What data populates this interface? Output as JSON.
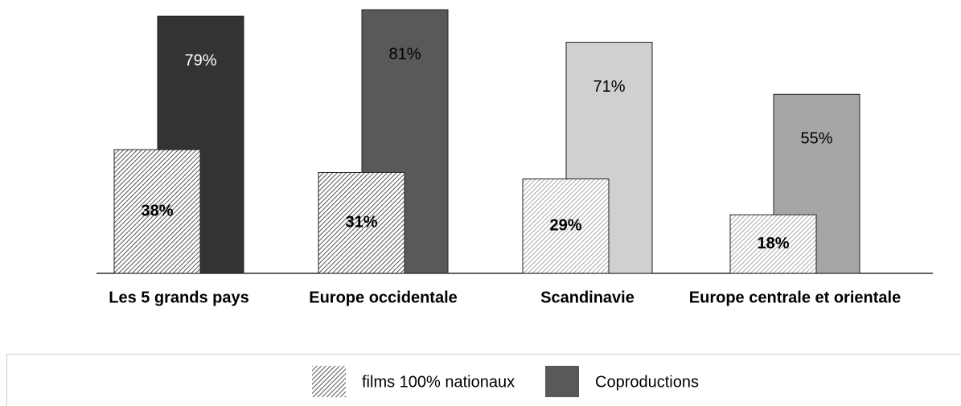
{
  "chart_data": {
    "type": "bar",
    "categories": [
      "Les 5 grands pays",
      "Europe occidentale",
      "Scandinavie",
      "Europe centrale et orientale"
    ],
    "series": [
      {
        "name": "films 100% nationaux",
        "color": "#555555",
        "hatched": true,
        "colors": [
          "#555555",
          "#555555",
          "#aaaaaa",
          "#aaaaaa"
        ],
        "values": [
          38,
          31,
          29,
          18
        ],
        "value_labels": [
          "38%",
          "31%",
          "29%",
          "18%"
        ]
      },
      {
        "name": "Coproductions",
        "color": "#595959",
        "hatched": false,
        "colors": [
          "#333333",
          "#595959",
          "#d0d0d0",
          "#a6a6a6"
        ],
        "values": [
          79,
          81,
          71,
          55
        ],
        "value_labels": [
          "79%",
          "81%",
          "71%",
          "55%"
        ]
      }
    ],
    "ylim": [
      0,
      82
    ],
    "legend": "bottom"
  }
}
